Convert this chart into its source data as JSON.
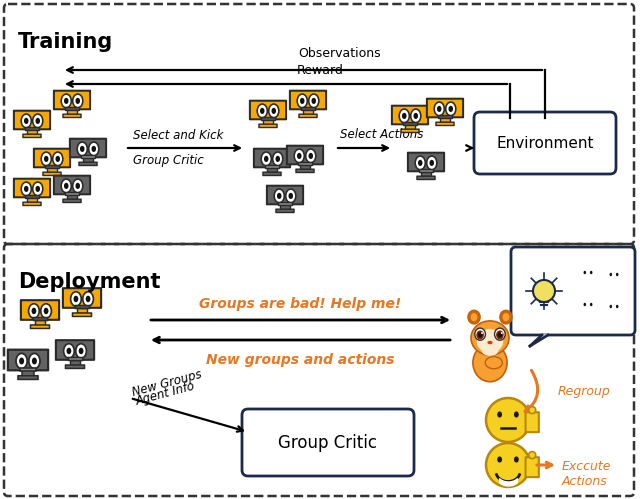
{
  "fig_width": 6.4,
  "fig_height": 4.99,
  "bg_color": "#ffffff",
  "training_label": "Training",
  "deployment_label": "Deployment",
  "environment_label": "Environment",
  "group_critic_label": "Group Critic",
  "observations_label": "Observations",
  "reward_label": "Reward",
  "select_kick_label": "Select and Kick",
  "group_critic_arrow_label": "Group Critic",
  "select_actions_label": "Select Actions",
  "groups_bad_label": "Groups are bad! Help me!",
  "new_groups_label": "New groups and actions",
  "new_groups_agent_label1": "New Groups",
  "new_groups_agent_label2": "Agent Info",
  "regroup_label": "Regroup",
  "execute_label": "Exccute\nActions",
  "orange_color": "#E87722",
  "dark_navy": "#1B2A4A",
  "gray_robot": "#636363",
  "gold_robot": "#F5A800",
  "arrow_color": "#111111"
}
